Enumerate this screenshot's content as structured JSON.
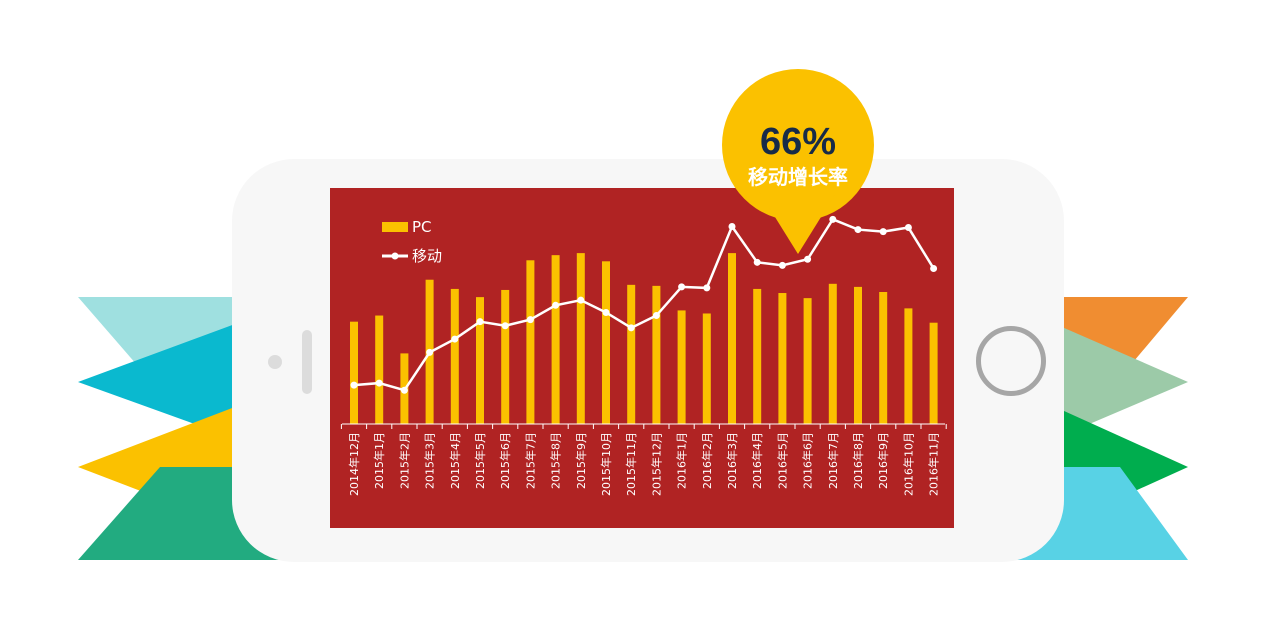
{
  "colors": {
    "screen": "#b02323",
    "bar": "#fbc100",
    "line": "#ffffff",
    "badge": "#fbc100",
    "badge_value_text": "#172b48",
    "phone": "#f7f7f7",
    "flags_left": [
      "#9fe0e0",
      "#0ab9cf",
      "#fbc100",
      "#22ab80"
    ],
    "flags_right": [
      "#f08d31",
      "#9ccaa8",
      "#00ad4e",
      "#58d2e5"
    ]
  },
  "badge": {
    "value": "66%",
    "label": "移动增长率"
  },
  "chart_data": {
    "type": "bar",
    "categories": [
      "2014年12月",
      "2015年1月",
      "2015年2月",
      "2015年3月",
      "2015年4月",
      "2015年5月",
      "2015年6月",
      "2015年7月",
      "2015年8月",
      "2015年9月",
      "2015年10月",
      "2015年11月",
      "2015年12月",
      "2016年1月",
      "2016年2月",
      "2016年3月",
      "2016年4月",
      "2016年5月",
      "2016年6月",
      "2016年7月",
      "2016年8月",
      "2016年9月",
      "2016年10月",
      "2016年11月"
    ],
    "series": [
      {
        "name": "PC",
        "type": "bar",
        "values": [
          100,
          106,
          69,
          141,
          132,
          124,
          131,
          160,
          165,
          167,
          159,
          136,
          135,
          111,
          108,
          167,
          132,
          128,
          123,
          137,
          134,
          129,
          113,
          99
        ]
      },
      {
        "name": "移动",
        "type": "line",
        "values": [
          38,
          40,
          33,
          70,
          83,
          100,
          96,
          102,
          116,
          121,
          109,
          94,
          106,
          134,
          133,
          193,
          158,
          155,
          161,
          200,
          190,
          188,
          192,
          152
        ]
      }
    ],
    "ylim": [
      0,
      215
    ],
    "legend": "top-left",
    "grid": false
  }
}
